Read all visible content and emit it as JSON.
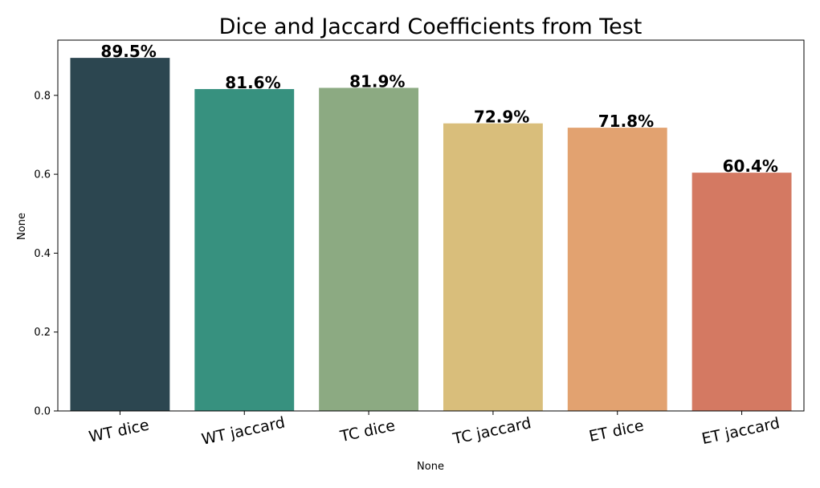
{
  "chart_data": {
    "type": "bar",
    "title": "Dice and Jaccard Coefficients from Test",
    "xlabel": "None",
    "ylabel": "None",
    "categories": [
      "WT dice",
      "WT jaccard",
      "TC dice",
      "TC jaccard",
      "ET dice",
      "ET jaccard"
    ],
    "values": [
      0.895,
      0.816,
      0.819,
      0.729,
      0.718,
      0.604
    ],
    "value_labels": [
      "89.5%",
      "81.6%",
      "81.9%",
      "72.9%",
      "71.8%",
      "60.4%"
    ],
    "colors": [
      "#2c4650",
      "#37917f",
      "#8caa82",
      "#d9be7b",
      "#e2a270",
      "#d47962"
    ],
    "yticks": [
      0.0,
      0.2,
      0.4,
      0.6,
      0.8
    ],
    "ytick_labels": [
      "0.0",
      "0.2",
      "0.4",
      "0.6",
      "0.8"
    ],
    "ylim": [
      0,
      0.94
    ],
    "grid": false,
    "legend": "none"
  }
}
